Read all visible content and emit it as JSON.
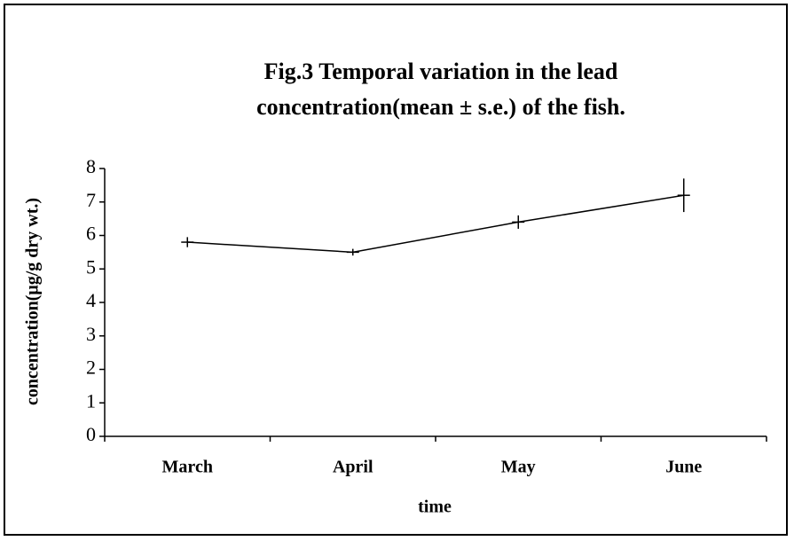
{
  "chart_data": {
    "type": "line",
    "title": [
      "Fig.3  Temporal variation in the lead",
      "concentration(mean ± s.e.) of the fish."
    ],
    "x_label": "time",
    "y_label": "concentration(μg/g dry wt.)",
    "categories": [
      "March",
      "April",
      "May",
      "June"
    ],
    "values": [
      5.8,
      5.5,
      6.4,
      7.2
    ],
    "errors": [
      0.15,
      0.1,
      0.2,
      0.5
    ],
    "color": "#000000",
    "ylim": [
      0,
      8
    ],
    "yticks": [
      0,
      1,
      2,
      3,
      4,
      5,
      6,
      7,
      8
    ],
    "grid": false
  }
}
